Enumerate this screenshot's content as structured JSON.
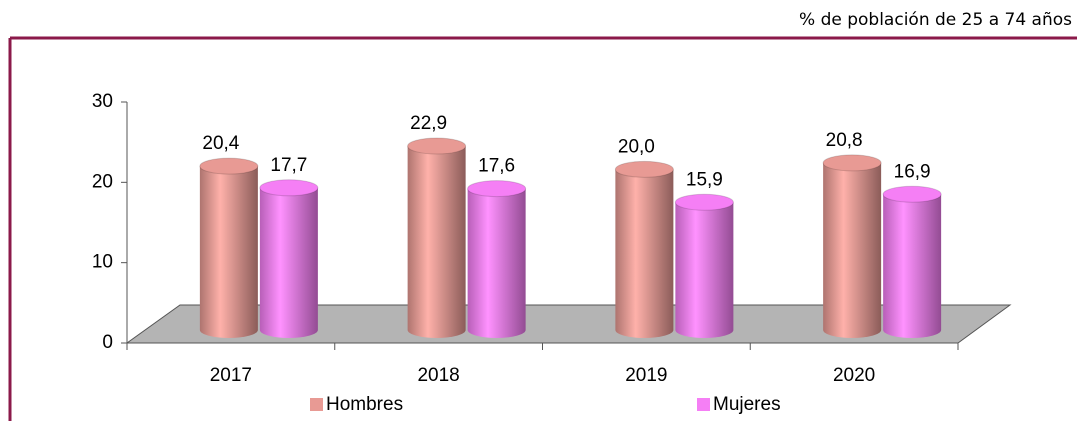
{
  "chart_data": {
    "type": "bar3d",
    "subtitle": "% de población de 25 a 74 años",
    "categories": [
      "2017",
      "2018",
      "2019",
      "2020"
    ],
    "series": [
      {
        "name": "Hombres",
        "color": "#e89a94",
        "values": [
          20.4,
          22.9,
          20.0,
          20.8
        ],
        "value_labels": [
          "20,4",
          "22,9",
          "20,0",
          "20,8"
        ]
      },
      {
        "name": "Mujeres",
        "color": "#f57ff5",
        "values": [
          17.7,
          17.6,
          15.9,
          16.9
        ],
        "value_labels": [
          "17,7",
          "17,6",
          "15,9",
          "16,9"
        ]
      }
    ],
    "ylim": [
      0,
      30
    ],
    "yticks": [
      0,
      10,
      20,
      30
    ]
  }
}
